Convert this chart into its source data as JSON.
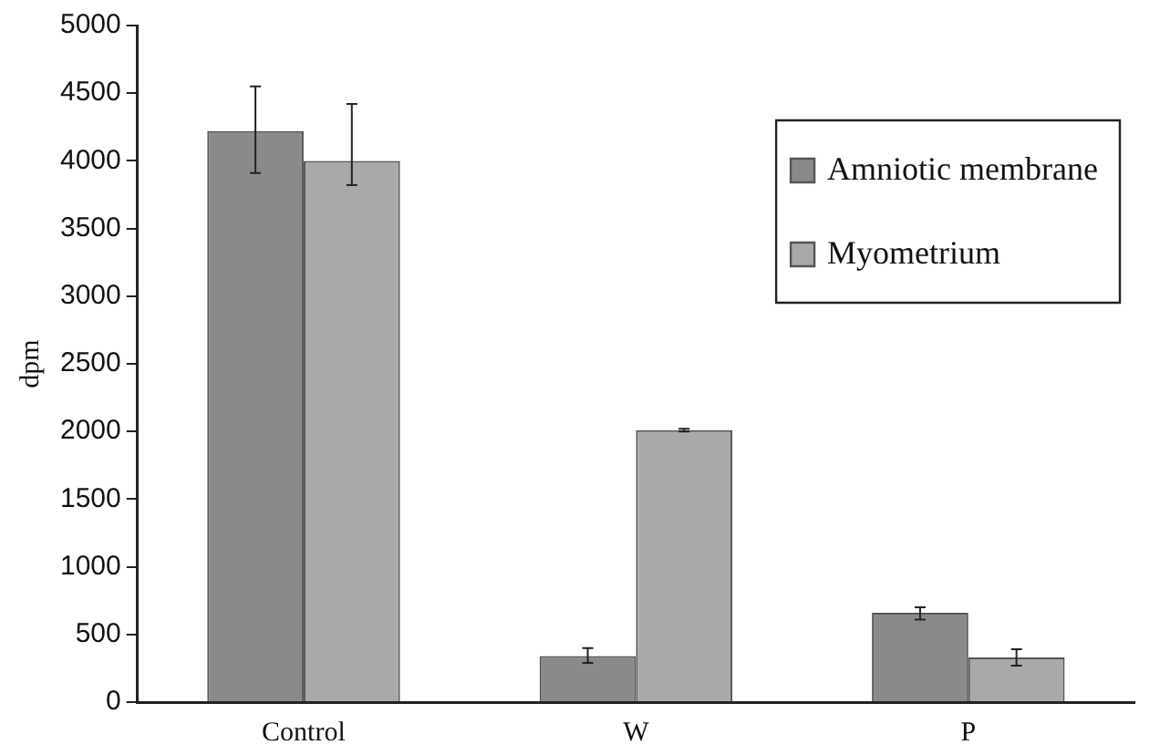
{
  "chart_data": {
    "type": "bar",
    "ylabel": "dpm",
    "categories": [
      "Control",
      "W",
      "P"
    ],
    "series": [
      {
        "name": "Amniotic membrane",
        "color": "#8a8a8a",
        "values": [
          4220,
          340,
          660
        ],
        "errors": [
          [
            3910,
            4550
          ],
          [
            290,
            400
          ],
          [
            610,
            700
          ]
        ]
      },
      {
        "name": "Myometrium",
        "color": "#a9a9a9",
        "values": [
          4000,
          2010,
          330
        ],
        "errors": [
          [
            3820,
            4420
          ],
          [
            2000,
            2020
          ],
          [
            270,
            390
          ]
        ]
      }
    ],
    "ylim": [
      0,
      5000
    ],
    "yticks": [
      0,
      500,
      1000,
      1500,
      2000,
      2500,
      3000,
      3500,
      4000,
      4500,
      5000
    ],
    "grid": false,
    "legend": "top right"
  }
}
